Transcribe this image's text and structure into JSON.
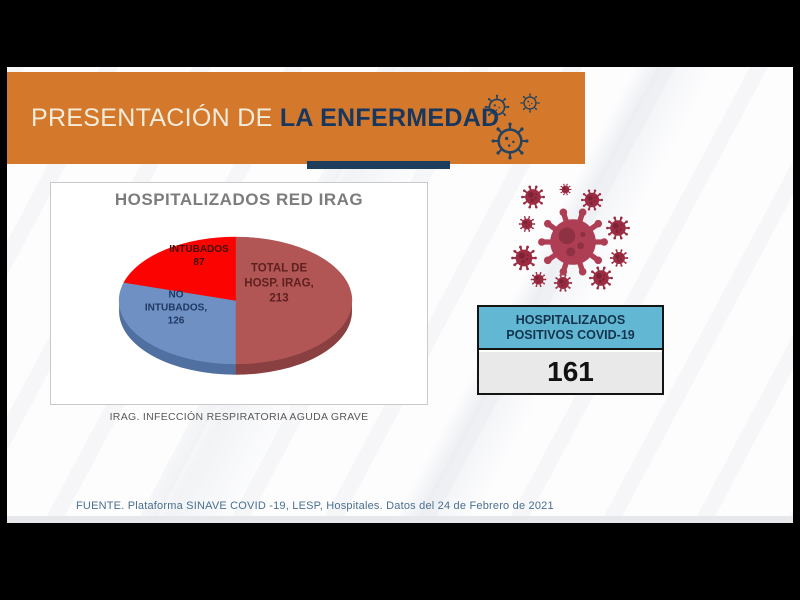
{
  "chart_data": {
    "type": "pie",
    "effect": "3d",
    "legend": "none",
    "title": "HOSPITALIZADOS RED IRAG",
    "note": "IRAG. INFECCIÓN RESPIRATORIA AGUDA GRAVE",
    "slices": [
      {
        "name": "TOTAL DE HOSP. IRAG",
        "value": 213,
        "color": "#b15555",
        "side_color": "#8a4040",
        "label_lines": [
          "TOTAL DE",
          "HOSP. IRAG,",
          "213"
        ],
        "label_color": "#5f2120"
      },
      {
        "name": "NO INTUBADOS",
        "value": 126,
        "color": "#6e90c2",
        "side_color": "#4f70a0",
        "label_lines": [
          "NO",
          "INTUBADOS,",
          "126"
        ],
        "label_color": "#1f3864"
      },
      {
        "name": "INTUBADOS",
        "value": 87,
        "color": "#fb0300",
        "side_color": "#c00000",
        "label_lines": [
          "INTUBADOS",
          "87"
        ],
        "label_color": "#42100c"
      }
    ]
  },
  "slide": {
    "banner": {
      "title_regular": "PRESENTACIÓN DE ",
      "title_bold": "LA ENFERMEDAD",
      "background_color": "#d4782c",
      "title_regular_color": "#f3ecdb",
      "title_bold_color": "#17375e",
      "accent_bar_color": "#1d3d5c",
      "icon_color": "#24435f"
    },
    "panel": {
      "title_color": "#7c7c7c"
    },
    "note_color": "#595959",
    "stat_box": {
      "header_line1": "HOSPITALIZADOS",
      "header_line2": "POSITIVOS COVID-19",
      "value": "161",
      "header_bg": "#62b8d2",
      "header_text_color": "#14334f",
      "value_bg": "#e9e9e9",
      "value_text_color": "#111111",
      "border_color": "#141414"
    },
    "covid_graphic": {
      "main_color": "#ae3e53",
      "satellite_color": "#9b2c41"
    },
    "footer": {
      "text": "FUENTE. Plataforma SINAVE COVID -19, LESP, Hospitales. Datos del 24 de Febrero de 2021",
      "color": "#4a6f92"
    }
  }
}
